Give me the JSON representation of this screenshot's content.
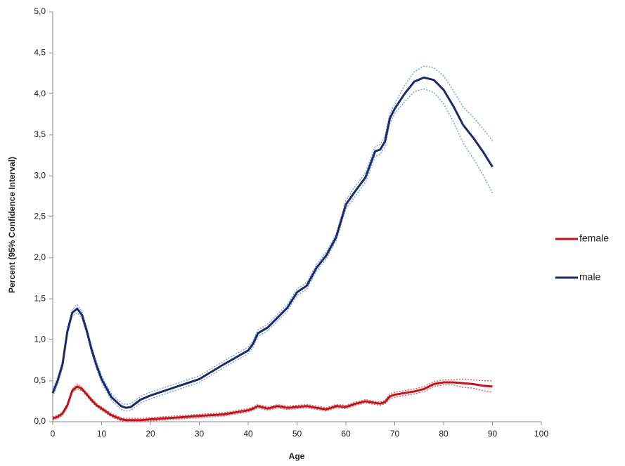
{
  "chart_data": {
    "type": "line",
    "xlabel": "Age",
    "ylabel": "Percent (95% Confidence Interval)",
    "x": [
      0,
      1,
      2,
      3,
      4,
      5,
      6,
      7,
      8,
      9,
      10,
      12,
      14,
      15,
      16,
      18,
      20,
      25,
      30,
      35,
      40,
      41,
      42,
      44,
      46,
      48,
      50,
      52,
      54,
      56,
      58,
      60,
      62,
      64,
      66,
      67,
      68,
      69,
      70,
      72,
      74,
      76,
      78,
      80,
      82,
      84,
      86,
      88,
      90
    ],
    "series": [
      {
        "name": "female",
        "color": "#c0141c",
        "ci_color": "#e05a5a",
        "values": [
          0.04,
          0.06,
          0.1,
          0.2,
          0.38,
          0.43,
          0.4,
          0.33,
          0.26,
          0.2,
          0.16,
          0.08,
          0.03,
          0.02,
          0.02,
          0.02,
          0.03,
          0.05,
          0.07,
          0.09,
          0.14,
          0.16,
          0.19,
          0.16,
          0.19,
          0.17,
          0.18,
          0.19,
          0.17,
          0.15,
          0.19,
          0.18,
          0.22,
          0.25,
          0.23,
          0.22,
          0.24,
          0.31,
          0.33,
          0.35,
          0.37,
          0.4,
          0.46,
          0.48,
          0.48,
          0.47,
          0.46,
          0.44,
          0.43
        ],
        "ci_upper": [
          0.06,
          0.08,
          0.12,
          0.22,
          0.4,
          0.46,
          0.42,
          0.35,
          0.28,
          0.22,
          0.18,
          0.1,
          0.05,
          0.04,
          0.04,
          0.04,
          0.05,
          0.07,
          0.09,
          0.11,
          0.16,
          0.18,
          0.21,
          0.18,
          0.21,
          0.19,
          0.2,
          0.21,
          0.19,
          0.17,
          0.21,
          0.2,
          0.24,
          0.27,
          0.25,
          0.24,
          0.26,
          0.34,
          0.36,
          0.38,
          0.4,
          0.43,
          0.49,
          0.51,
          0.51,
          0.52,
          0.51,
          0.5,
          0.5
        ],
        "ci_lower": [
          0.02,
          0.04,
          0.08,
          0.18,
          0.36,
          0.4,
          0.38,
          0.31,
          0.24,
          0.18,
          0.14,
          0.06,
          0.01,
          0,
          0,
          0,
          0.01,
          0.03,
          0.05,
          0.07,
          0.12,
          0.14,
          0.17,
          0.14,
          0.17,
          0.15,
          0.16,
          0.17,
          0.15,
          0.13,
          0.17,
          0.16,
          0.2,
          0.23,
          0.21,
          0.2,
          0.22,
          0.28,
          0.3,
          0.32,
          0.34,
          0.37,
          0.43,
          0.45,
          0.45,
          0.42,
          0.41,
          0.38,
          0.36
        ]
      },
      {
        "name": "male",
        "color": "#1a2a6c",
        "ci_color": "#7a9fd8",
        "values": [
          0.35,
          0.5,
          0.7,
          1.1,
          1.33,
          1.38,
          1.3,
          1.1,
          0.87,
          0.68,
          0.52,
          0.3,
          0.19,
          0.17,
          0.18,
          0.27,
          0.32,
          0.42,
          0.52,
          0.7,
          0.87,
          0.95,
          1.08,
          1.15,
          1.27,
          1.39,
          1.58,
          1.66,
          1.88,
          2.03,
          2.25,
          2.65,
          2.82,
          2.98,
          3.3,
          3.32,
          3.42,
          3.7,
          3.82,
          4.0,
          4.15,
          4.2,
          4.17,
          4.05,
          3.85,
          3.62,
          3.47,
          3.3,
          3.11
        ],
        "ci_upper": [
          0.39,
          0.54,
          0.74,
          1.14,
          1.37,
          1.43,
          1.34,
          1.14,
          0.91,
          0.72,
          0.56,
          0.34,
          0.23,
          0.21,
          0.22,
          0.31,
          0.36,
          0.46,
          0.56,
          0.74,
          0.91,
          0.99,
          1.12,
          1.19,
          1.31,
          1.43,
          1.62,
          1.7,
          1.92,
          2.07,
          2.29,
          2.7,
          2.88,
          3.04,
          3.36,
          3.38,
          3.48,
          3.76,
          3.88,
          4.1,
          4.27,
          4.34,
          4.32,
          4.22,
          4.04,
          3.84,
          3.72,
          3.58,
          3.43
        ],
        "ci_lower": [
          0.31,
          0.46,
          0.66,
          1.06,
          1.29,
          1.33,
          1.26,
          1.06,
          0.83,
          0.64,
          0.48,
          0.26,
          0.15,
          0.13,
          0.14,
          0.23,
          0.28,
          0.38,
          0.48,
          0.66,
          0.83,
          0.91,
          1.04,
          1.11,
          1.23,
          1.35,
          1.54,
          1.62,
          1.84,
          1.99,
          2.21,
          2.6,
          2.76,
          2.92,
          3.24,
          3.26,
          3.36,
          3.64,
          3.76,
          3.9,
          4.03,
          4.06,
          4.02,
          3.88,
          3.66,
          3.4,
          3.22,
          3.02,
          2.79
        ]
      }
    ],
    "xlim": [
      0,
      100
    ],
    "xticks": [
      0,
      10,
      20,
      30,
      40,
      50,
      60,
      70,
      80,
      90,
      100
    ],
    "ylim": [
      0,
      5
    ],
    "yticks": [
      {
        "value": 0,
        "label": "0,0"
      },
      {
        "value": 0.5,
        "label": "0,5"
      },
      {
        "value": 1,
        "label": "1,0"
      },
      {
        "value": 1.5,
        "label": "1,5"
      },
      {
        "value": 2,
        "label": "2,0"
      },
      {
        "value": 2.5,
        "label": "2,5"
      },
      {
        "value": 3,
        "label": "3,0"
      },
      {
        "value": 3.5,
        "label": "3,5"
      },
      {
        "value": 4,
        "label": "4,0"
      },
      {
        "value": 4.5,
        "label": "4,5"
      },
      {
        "value": 5,
        "label": "5,0"
      }
    ],
    "grid": false,
    "legend": "right"
  }
}
